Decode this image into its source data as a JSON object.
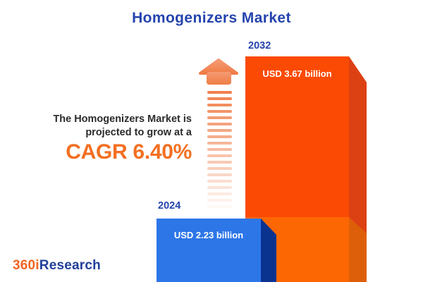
{
  "title": "Homogenizers Market",
  "description": {
    "line1": "The Homogenizers Market is",
    "line2": "projected to grow at a",
    "cagr_text": "CAGR 6.40%"
  },
  "bars": [
    {
      "year": "2024",
      "value_label": "USD 2.23 billion"
    },
    {
      "year": "2032",
      "value_label": "USD 3.67 billion"
    }
  ],
  "logo": {
    "prefix": "360i",
    "suffix": "Research"
  },
  "arrow": {
    "stripe_count": 19,
    "fade_step": 0.052,
    "color": "#F0814F"
  },
  "colors": {
    "title_blue": "#2444AE",
    "description_text": "#2B2B2B",
    "cagr_orange": "#F36F21",
    "bar_2024_face": "#2D76E8",
    "bar_2024_side": "#0A3390",
    "bar_2032_face": "#FB4A04",
    "bar_2032_side": "#DC4113",
    "bar_2032_lower_face": "#FD6703",
    "bar_2032_lower_side": "#DE5F09",
    "value_text": "#FFFFFF",
    "logo_orange": "#F26522",
    "logo_blue": "#21409A"
  },
  "chart_data": {
    "type": "bar",
    "title": "Homogenizers Market",
    "categories": [
      "2024",
      "2032"
    ],
    "values": [
      2.23,
      3.67
    ],
    "unit": "USD billion",
    "value_labels": [
      "USD 2.23 billion",
      "USD 3.67 billion"
    ],
    "cagr_percent": 6.4,
    "ylim": [
      0,
      3.67
    ],
    "grid": false,
    "legend": "none",
    "bar_colors": [
      "#2D76E8",
      "#FB4A04"
    ]
  }
}
